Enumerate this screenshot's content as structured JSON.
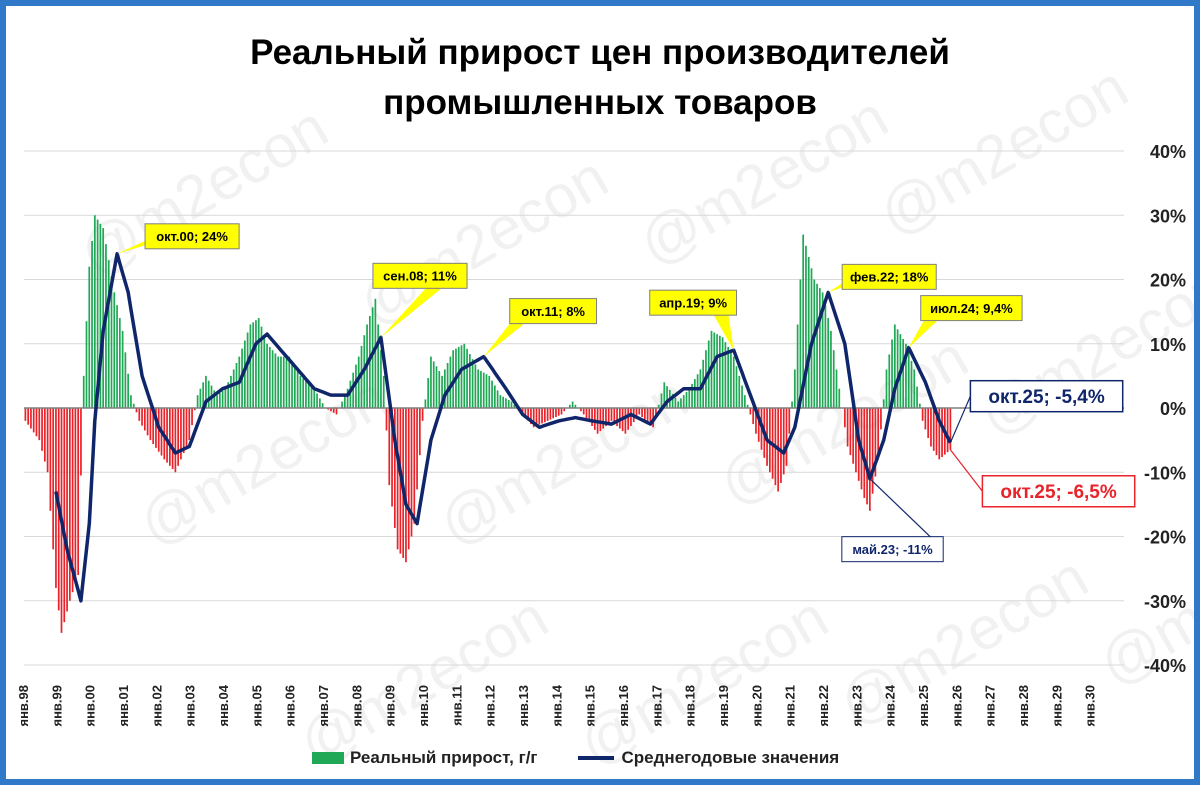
{
  "title_line1": "Реальный прирост цен производителей",
  "title_line2": "промышленных товаров",
  "watermark": "@m2econ",
  "colors": {
    "positive": "#21a857",
    "negative": "#e8232a",
    "line": "#10266b",
    "frame": "#2f79c8",
    "callout_fill": "#ffff00"
  },
  "legend": {
    "bars": "Реальный прирост, г/г",
    "line": "Среднегодовые значения"
  },
  "chart_data": {
    "type": "bar+line",
    "y_axis": {
      "position": "right",
      "ylim": [
        -40,
        40
      ],
      "ticks": [
        "40%",
        "30%",
        "20%",
        "10%",
        "0%",
        "-10%",
        "-20%",
        "-30%",
        "-40%"
      ],
      "grid": true
    },
    "x_tick_labels": [
      "янв.98",
      "янв.99",
      "янв.00",
      "янв.01",
      "янв.02",
      "янв.03",
      "янв.04",
      "янв.05",
      "янв.06",
      "янв.07",
      "янв.08",
      "янв.09",
      "янв.10",
      "янв.11",
      "янв.12",
      "янв.13",
      "янв.14",
      "янв.15",
      "янв.16",
      "янв.17",
      "янв.18",
      "янв.19",
      "янв.20",
      "янв.21",
      "янв.22",
      "янв.23",
      "янв.24",
      "янв.25",
      "янв.26",
      "янв.27",
      "янв.28",
      "янв.29",
      "янв.30"
    ],
    "x_start_year": 1998,
    "bar_series": {
      "name": "Реальный прирост, г/г",
      "monthly_anchors": [
        [
          "1998-01",
          -2
        ],
        [
          "1998-06",
          -5
        ],
        [
          "1998-09",
          -10
        ],
        [
          "1998-12",
          -28
        ],
        [
          "1999-02",
          -35
        ],
        [
          "1999-05",
          -30
        ],
        [
          "1999-08",
          -26
        ],
        [
          "1999-10",
          5
        ],
        [
          "1999-12",
          22
        ],
        [
          "2000-02",
          30
        ],
        [
          "2000-05",
          28
        ],
        [
          "2000-09",
          18
        ],
        [
          "2000-12",
          12
        ],
        [
          "2001-03",
          2
        ],
        [
          "2001-06",
          -2
        ],
        [
          "2001-10",
          -5
        ],
        [
          "2002-03",
          -8
        ],
        [
          "2002-07",
          -10
        ],
        [
          "2002-12",
          -5
        ],
        [
          "2003-03",
          2
        ],
        [
          "2003-06",
          5
        ],
        [
          "2003-10",
          2
        ],
        [
          "2004-01",
          3
        ],
        [
          "2004-06",
          8
        ],
        [
          "2004-10",
          13
        ],
        [
          "2005-01",
          14
        ],
        [
          "2005-04",
          10
        ],
        [
          "2005-08",
          8
        ],
        [
          "2005-12",
          8
        ],
        [
          "2006-04",
          5
        ],
        [
          "2006-09",
          3
        ],
        [
          "2007-01",
          0
        ],
        [
          "2007-05",
          -1
        ],
        [
          "2007-09",
          3
        ],
        [
          "2008-01",
          8
        ],
        [
          "2008-04",
          13
        ],
        [
          "2008-07",
          17
        ],
        [
          "2008-10",
          5
        ],
        [
          "2008-12",
          -12
        ],
        [
          "2009-03",
          -22
        ],
        [
          "2009-06",
          -24
        ],
        [
          "2009-09",
          -18
        ],
        [
          "2009-12",
          -2
        ],
        [
          "2010-03",
          8
        ],
        [
          "2010-07",
          5
        ],
        [
          "2010-11",
          9
        ],
        [
          "2011-03",
          10
        ],
        [
          "2011-08",
          6
        ],
        [
          "2011-12",
          5
        ],
        [
          "2012-04",
          2
        ],
        [
          "2012-08",
          1
        ],
        [
          "2012-12",
          -1
        ],
        [
          "2013-04",
          -3
        ],
        [
          "2013-09",
          -2
        ],
        [
          "2014-02",
          -1
        ],
        [
          "2014-06",
          1
        ],
        [
          "2014-10",
          -1
        ],
        [
          "2015-03",
          -4
        ],
        [
          "2015-08",
          -2
        ],
        [
          "2016-01",
          -4
        ],
        [
          "2016-06",
          -1
        ],
        [
          "2016-11",
          -3
        ],
        [
          "2017-03",
          4
        ],
        [
          "2017-08",
          1
        ],
        [
          "2017-12",
          3
        ],
        [
          "2018-04",
          6
        ],
        [
          "2018-08",
          12
        ],
        [
          "2018-12",
          11
        ],
        [
          "2019-04",
          8
        ],
        [
          "2019-08",
          2
        ],
        [
          "2019-12",
          -4
        ],
        [
          "2020-04",
          -9
        ],
        [
          "2020-08",
          -13
        ],
        [
          "2020-11",
          -9
        ],
        [
          "2021-02",
          6
        ],
        [
          "2021-05",
          27
        ],
        [
          "2021-09",
          20
        ],
        [
          "2021-12",
          18
        ],
        [
          "2022-03",
          12
        ],
        [
          "2022-06",
          3
        ],
        [
          "2022-09",
          -6
        ],
        [
          "2022-12",
          -10
        ],
        [
          "2023-03",
          -14
        ],
        [
          "2023-05",
          -16
        ],
        [
          "2023-08",
          -8
        ],
        [
          "2023-11",
          6
        ],
        [
          "2024-02",
          13
        ],
        [
          "2024-06",
          10
        ],
        [
          "2024-09",
          6
        ],
        [
          "2024-12",
          -2
        ],
        [
          "2025-03",
          -6
        ],
        [
          "2025-06",
          -8
        ],
        [
          "2025-10",
          -6.5
        ]
      ]
    },
    "line_series": {
      "name": "Среднегодовые значения",
      "monthly_anchors": [
        [
          "1998-12",
          -13
        ],
        [
          "1999-04",
          -22
        ],
        [
          "1999-09",
          -30
        ],
        [
          "1999-12",
          -18
        ],
        [
          "2000-02",
          -2
        ],
        [
          "2000-05",
          12
        ],
        [
          "2000-10",
          24
        ],
        [
          "2001-02",
          18
        ],
        [
          "2001-07",
          5
        ],
        [
          "2002-01",
          -3
        ],
        [
          "2002-07",
          -7
        ],
        [
          "2002-12",
          -6
        ],
        [
          "2003-06",
          1
        ],
        [
          "2003-12",
          3
        ],
        [
          "2004-06",
          4
        ],
        [
          "2004-12",
          10
        ],
        [
          "2005-04",
          11.5
        ],
        [
          "2005-09",
          9
        ],
        [
          "2006-03",
          6
        ],
        [
          "2006-09",
          3
        ],
        [
          "2007-03",
          2
        ],
        [
          "2007-09",
          2
        ],
        [
          "2008-03",
          6
        ],
        [
          "2008-09",
          11
        ],
        [
          "2009-02",
          -5
        ],
        [
          "2009-06",
          -15
        ],
        [
          "2009-10",
          -18
        ],
        [
          "2010-03",
          -5
        ],
        [
          "2010-08",
          2
        ],
        [
          "2011-02",
          6
        ],
        [
          "2011-10",
          8
        ],
        [
          "2012-06",
          3
        ],
        [
          "2012-12",
          -1
        ],
        [
          "2013-06",
          -3
        ],
        [
          "2014-01",
          -2
        ],
        [
          "2014-07",
          -1.5
        ],
        [
          "2015-01",
          -2
        ],
        [
          "2015-08",
          -2.5
        ],
        [
          "2016-03",
          -1
        ],
        [
          "2016-10",
          -2.5
        ],
        [
          "2017-04",
          1
        ],
        [
          "2017-10",
          3
        ],
        [
          "2018-04",
          3
        ],
        [
          "2018-10",
          8
        ],
        [
          "2019-04",
          9
        ],
        [
          "2019-10",
          2
        ],
        [
          "2020-04",
          -5
        ],
        [
          "2020-10",
          -7
        ],
        [
          "2021-02",
          -3
        ],
        [
          "2021-08",
          10
        ],
        [
          "2022-02",
          18
        ],
        [
          "2022-08",
          10
        ],
        [
          "2023-01",
          -5
        ],
        [
          "2023-05",
          -11
        ],
        [
          "2023-10",
          -5
        ],
        [
          "2024-02",
          3
        ],
        [
          "2024-07",
          9.4
        ],
        [
          "2025-01",
          4
        ],
        [
          "2025-06",
          -2
        ],
        [
          "2025-10",
          -5.4
        ]
      ]
    },
    "annotations": [
      {
        "text": "окт.00; 24%",
        "date": "2000-10",
        "value": 24,
        "style": "yellow"
      },
      {
        "text": "сен.08; 11%",
        "date": "2008-09",
        "value": 11,
        "style": "yellow"
      },
      {
        "text": "окт.11; 8%",
        "date": "2011-10",
        "value": 8,
        "style": "yellow"
      },
      {
        "text": "апр.19; 9%",
        "date": "2019-04",
        "value": 9,
        "style": "yellow"
      },
      {
        "text": "фев.22; 18%",
        "date": "2022-02",
        "value": 18,
        "style": "yellow"
      },
      {
        "text": "июл.24; 9,4%",
        "date": "2024-07",
        "value": 9.4,
        "style": "yellow"
      },
      {
        "text": "май.23; -11%",
        "date": "2023-05",
        "value": -11,
        "style": "navy-small"
      },
      {
        "text": "окт.25; -5,4%",
        "date": "2025-10",
        "value": -5.4,
        "style": "navy-big"
      },
      {
        "text": "окт.25; -6,5%",
        "date": "2025-10",
        "value": -6.5,
        "style": "red-big"
      }
    ]
  }
}
